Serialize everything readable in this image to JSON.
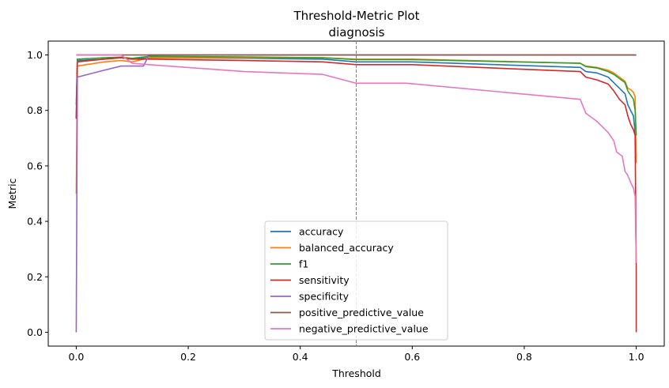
{
  "chart_data": {
    "type": "line",
    "title": "Threshold-Metric Plot",
    "subtitle": "diagnosis",
    "xlabel": "Threshold",
    "ylabel": "Metric",
    "xlim": [
      -0.05,
      1.05
    ],
    "ylim": [
      -0.05,
      1.05
    ],
    "xticks": [
      0.0,
      0.2,
      0.4,
      0.6,
      0.8,
      1.0
    ],
    "xtick_labels": [
      "0.0",
      "0.2",
      "0.4",
      "0.6",
      "0.8",
      "1.0"
    ],
    "yticks": [
      0.0,
      0.2,
      0.4,
      0.6,
      0.8,
      1.0
    ],
    "ytick_labels": [
      "0.0",
      "0.2",
      "0.4",
      "0.6",
      "0.8",
      "1.0"
    ],
    "grid": false,
    "legend_position": "lower-center",
    "reference_line": {
      "x": 0.5,
      "style": "dashed",
      "color": "#808080"
    },
    "series": [
      {
        "name": "accuracy",
        "color": "#1f77b4",
        "points": [
          [
            0,
            0.77
          ],
          [
            0.002,
            0.98
          ],
          [
            0.05,
            0.985
          ],
          [
            0.08,
            0.99
          ],
          [
            0.1,
            0.985
          ],
          [
            0.13,
            0.99
          ],
          [
            0.3,
            0.988
          ],
          [
            0.44,
            0.985
          ],
          [
            0.5,
            0.975
          ],
          [
            0.6,
            0.975
          ],
          [
            0.9,
            0.955
          ],
          [
            0.91,
            0.94
          ],
          [
            0.93,
            0.935
          ],
          [
            0.95,
            0.92
          ],
          [
            0.96,
            0.9
          ],
          [
            0.97,
            0.88
          ],
          [
            0.98,
            0.86
          ],
          [
            0.985,
            0.82
          ],
          [
            0.99,
            0.8
          ],
          [
            0.995,
            0.78
          ],
          [
            0.998,
            0.72
          ],
          [
            1.0,
            0.63
          ]
        ]
      },
      {
        "name": "balanced_accuracy",
        "color": "#ff7f0e",
        "points": [
          [
            0,
            0.5
          ],
          [
            0.002,
            0.96
          ],
          [
            0.05,
            0.975
          ],
          [
            0.08,
            0.98
          ],
          [
            0.1,
            0.975
          ],
          [
            0.13,
            0.99
          ],
          [
            0.3,
            0.99
          ],
          [
            0.44,
            0.99
          ],
          [
            0.5,
            0.985
          ],
          [
            0.6,
            0.985
          ],
          [
            0.9,
            0.97
          ],
          [
            0.91,
            0.96
          ],
          [
            0.93,
            0.955
          ],
          [
            0.95,
            0.945
          ],
          [
            0.96,
            0.935
          ],
          [
            0.97,
            0.92
          ],
          [
            0.98,
            0.905
          ],
          [
            0.985,
            0.88
          ],
          [
            0.99,
            0.875
          ],
          [
            0.995,
            0.865
          ],
          [
            0.998,
            0.85
          ],
          [
            1.0,
            0.61
          ]
        ]
      },
      {
        "name": "f1",
        "color": "#2ca02c",
        "points": [
          [
            0,
            0.82
          ],
          [
            0.002,
            0.985
          ],
          [
            0.05,
            0.99
          ],
          [
            0.08,
            0.992
          ],
          [
            0.1,
            0.988
          ],
          [
            0.13,
            0.995
          ],
          [
            0.3,
            0.993
          ],
          [
            0.44,
            0.99
          ],
          [
            0.5,
            0.983
          ],
          [
            0.6,
            0.983
          ],
          [
            0.9,
            0.97
          ],
          [
            0.91,
            0.958
          ],
          [
            0.93,
            0.953
          ],
          [
            0.95,
            0.94
          ],
          [
            0.96,
            0.93
          ],
          [
            0.97,
            0.915
          ],
          [
            0.98,
            0.9
          ],
          [
            0.985,
            0.87
          ],
          [
            0.99,
            0.855
          ],
          [
            0.995,
            0.84
          ],
          [
            0.998,
            0.8
          ],
          [
            1.0,
            0.71
          ]
        ]
      },
      {
        "name": "sensitivity",
        "color": "#d62728",
        "points": [
          [
            0,
            0.77
          ],
          [
            0.002,
            0.975
          ],
          [
            0.05,
            0.985
          ],
          [
            0.08,
            0.99
          ],
          [
            0.1,
            0.985
          ],
          [
            0.13,
            0.985
          ],
          [
            0.3,
            0.98
          ],
          [
            0.44,
            0.975
          ],
          [
            0.5,
            0.965
          ],
          [
            0.6,
            0.965
          ],
          [
            0.9,
            0.94
          ],
          [
            0.91,
            0.92
          ],
          [
            0.93,
            0.91
          ],
          [
            0.95,
            0.895
          ],
          [
            0.96,
            0.87
          ],
          [
            0.97,
            0.84
          ],
          [
            0.98,
            0.82
          ],
          [
            0.985,
            0.78
          ],
          [
            0.99,
            0.75
          ],
          [
            0.995,
            0.73
          ],
          [
            0.998,
            0.71
          ],
          [
            1.0,
            0.23
          ],
          [
            1.0,
            0.0
          ]
        ]
      },
      {
        "name": "specificity",
        "color": "#9467bd",
        "points": [
          [
            0,
            0.0
          ],
          [
            0.002,
            0.92
          ],
          [
            0.04,
            0.94
          ],
          [
            0.08,
            0.96
          ],
          [
            0.12,
            0.96
          ],
          [
            0.13,
            1.0
          ],
          [
            0.3,
            1.0
          ],
          [
            0.5,
            1.0
          ],
          [
            0.7,
            1.0
          ],
          [
            0.9,
            1.0
          ],
          [
            1.0,
            1.0
          ]
        ]
      },
      {
        "name": "positive_predictive_value",
        "color": "#8c564b",
        "points": [
          [
            0,
            1.0
          ],
          [
            0.1,
            1.0
          ],
          [
            0.13,
            1.0
          ],
          [
            0.3,
            1.0
          ],
          [
            0.5,
            1.0
          ],
          [
            0.7,
            1.0
          ],
          [
            0.9,
            1.0
          ],
          [
            1.0,
            1.0
          ]
        ]
      },
      {
        "name": "negative_predictive_value",
        "color": "#e377c2",
        "points": [
          [
            0,
            1.0
          ],
          [
            0.08,
            1.0
          ],
          [
            0.1,
            0.97
          ],
          [
            0.13,
            0.965
          ],
          [
            0.3,
            0.94
          ],
          [
            0.44,
            0.93
          ],
          [
            0.5,
            0.898
          ],
          [
            0.59,
            0.898
          ],
          [
            0.9,
            0.84
          ],
          [
            0.91,
            0.79
          ],
          [
            0.93,
            0.76
          ],
          [
            0.95,
            0.72
          ],
          [
            0.96,
            0.69
          ],
          [
            0.965,
            0.65
          ],
          [
            0.975,
            0.635
          ],
          [
            0.98,
            0.58
          ],
          [
            0.985,
            0.565
          ],
          [
            0.99,
            0.54
          ],
          [
            0.995,
            0.52
          ],
          [
            0.998,
            0.49
          ],
          [
            1.0,
            0.25
          ]
        ]
      }
    ]
  }
}
